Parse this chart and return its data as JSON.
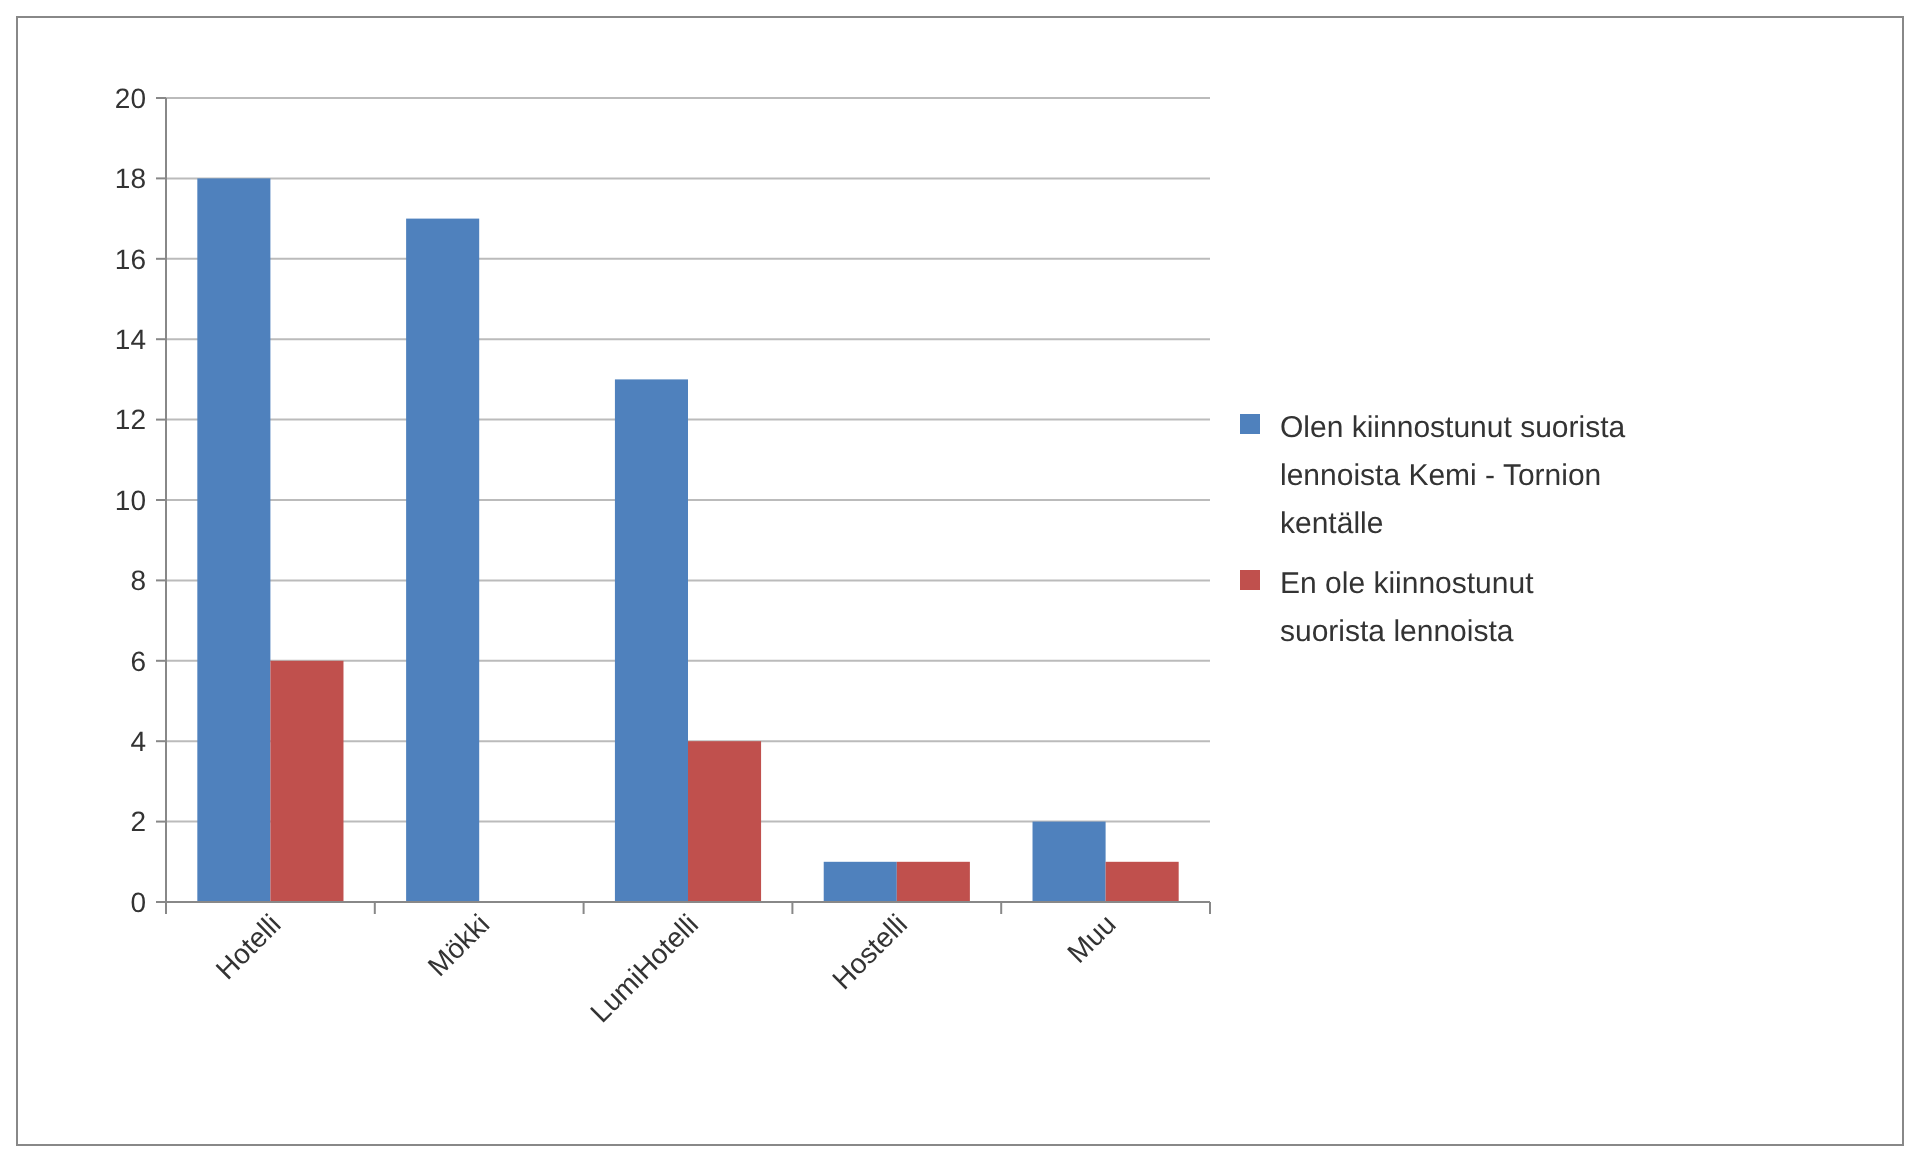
{
  "chart_data": {
    "type": "bar",
    "categories": [
      "Hotelli",
      "Mökki",
      "LumiHotelli",
      "Hostelli",
      "Muu"
    ],
    "series": [
      {
        "name": "Olen kiinnostunut suorista lennoista Kemi - Tornion kentälle",
        "color": "#4f81bd",
        "values": [
          18,
          17,
          13,
          1,
          2
        ]
      },
      {
        "name": "En ole kiinnostunut suorista lennoista",
        "color": "#c0504d",
        "values": [
          6,
          0,
          4,
          1,
          1
        ]
      }
    ],
    "ylim": [
      0,
      20
    ],
    "yticks": [
      0,
      2,
      4,
      6,
      8,
      10,
      12,
      14,
      16,
      18,
      20
    ],
    "grid": "y",
    "legend": "right"
  }
}
